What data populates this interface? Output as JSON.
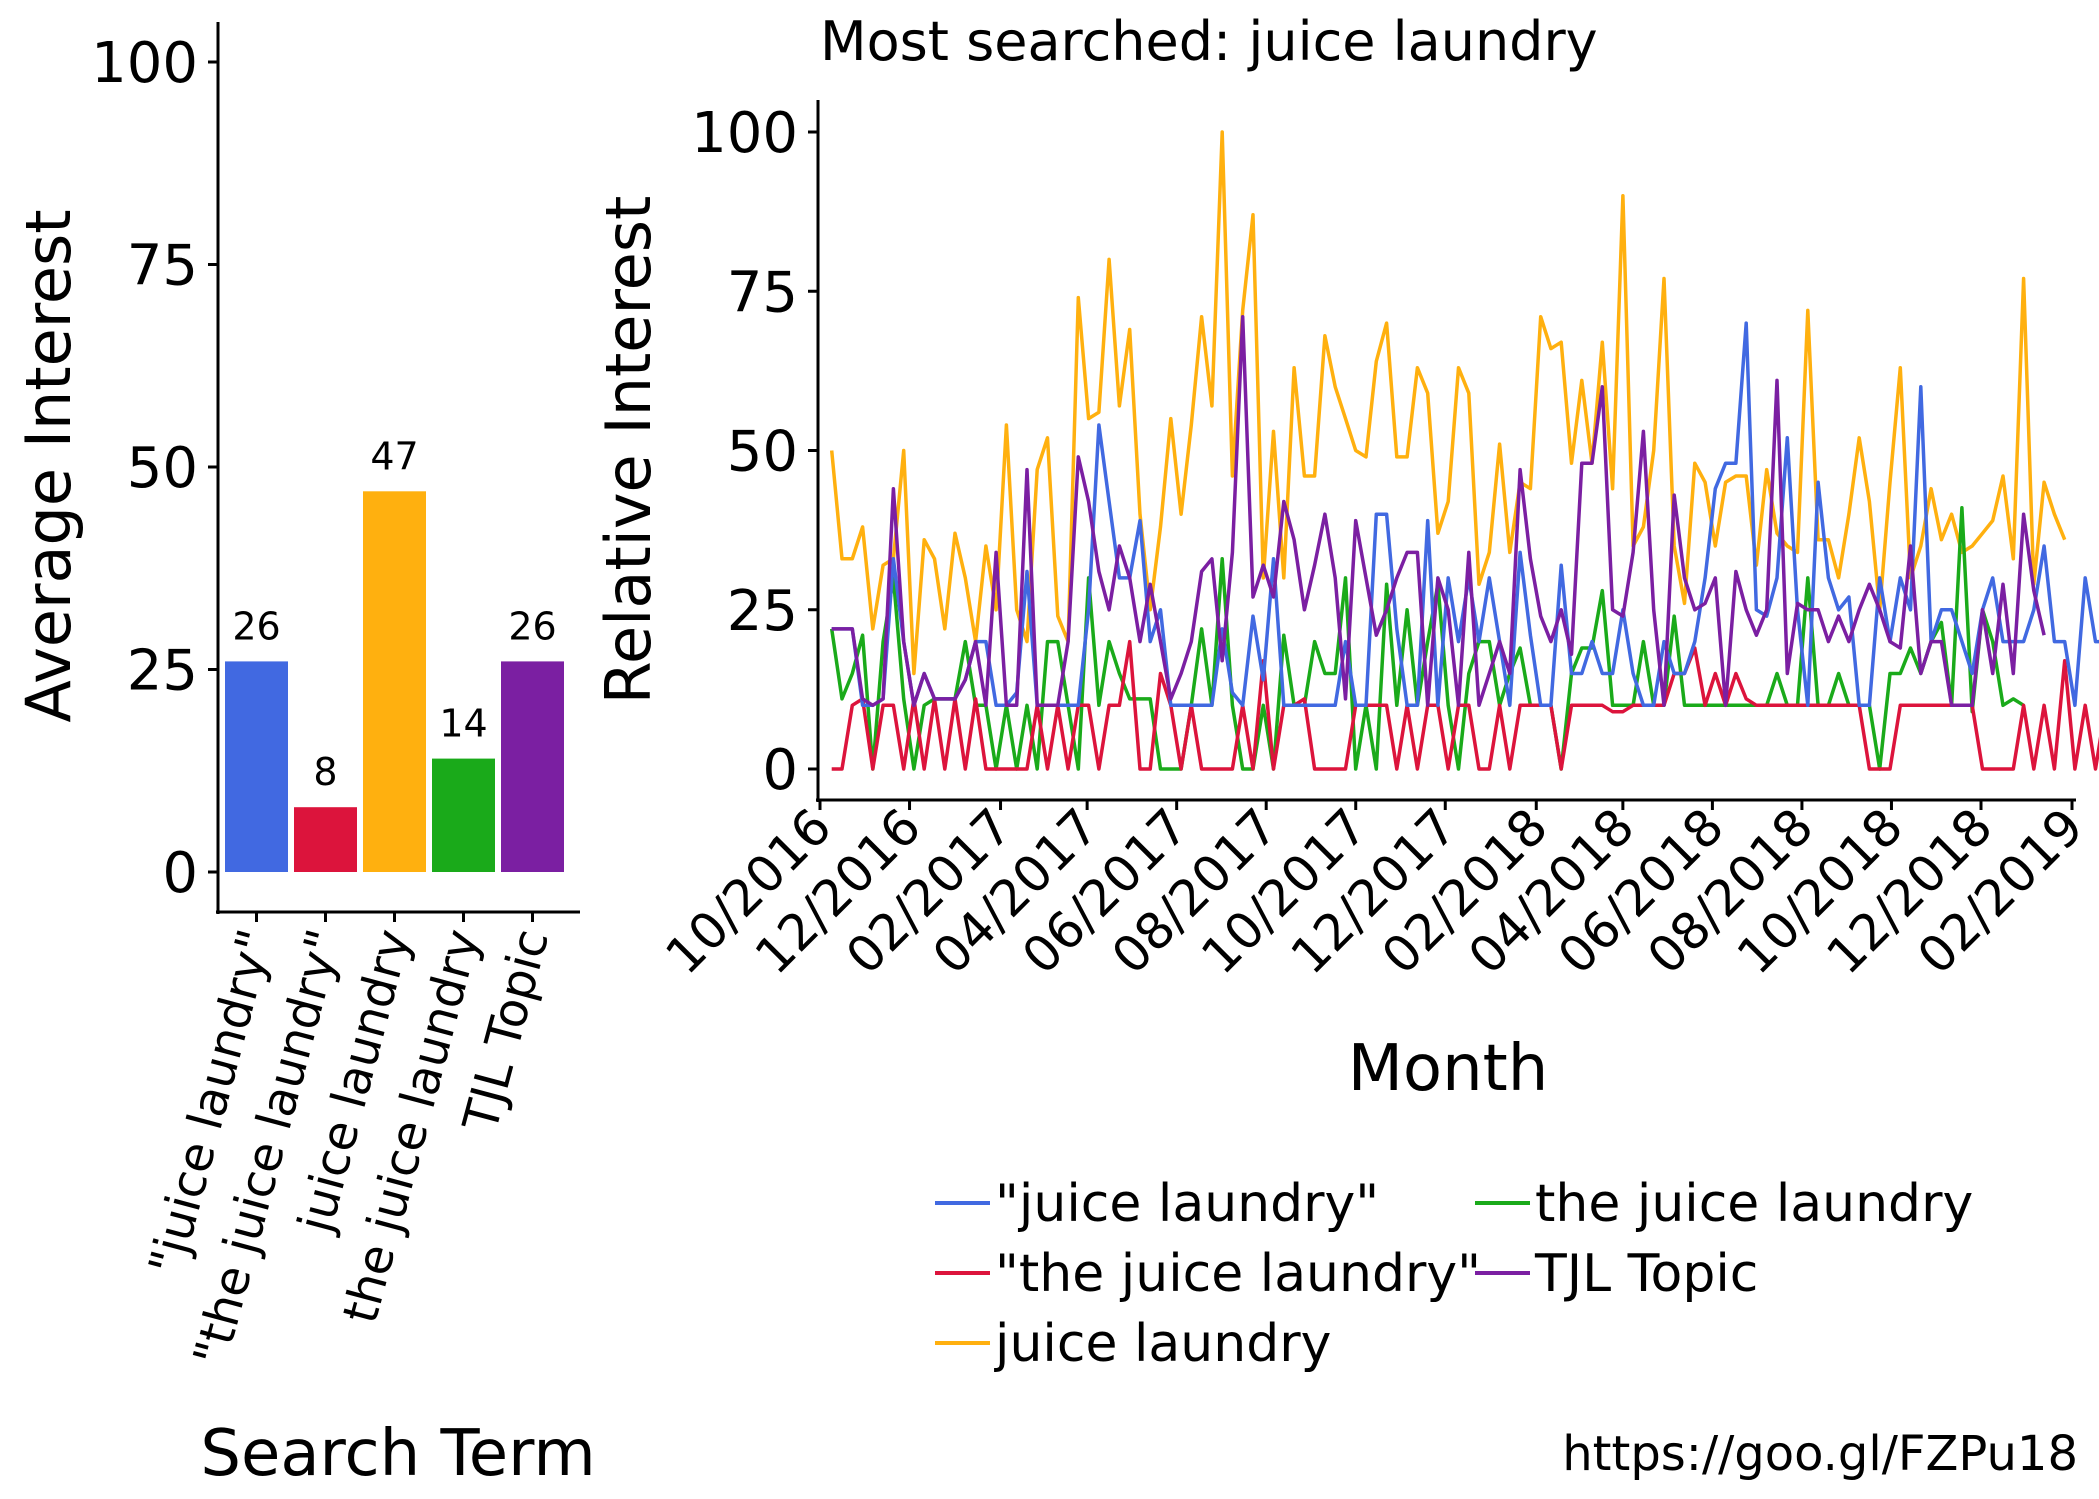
{
  "title": "Most searched: juice laundry",
  "source_url": "https://goo.gl/FZPu18",
  "colors": {
    "title": "#D23A2E",
    "jl_quoted": "#4169E1",
    "tjl_quoted": "#DC143C",
    "jl": "#FFB00F",
    "tjl": "#1AAA1A",
    "topic": "#7B1FA2"
  },
  "chart_data": [
    {
      "type": "bar",
      "xlabel": "Search Term",
      "ylabel": "Average Interest",
      "ylim": [
        0,
        100
      ],
      "yticks": [
        "0",
        "25",
        "50",
        "75",
        "100"
      ],
      "categories": [
        "\"juice laundry\"",
        "\"the juice laundry\"",
        "juice laundry",
        "the juice laundry",
        "TJL Topic"
      ],
      "values": [
        26,
        8,
        47,
        14,
        26
      ],
      "value_labels": [
        "26",
        "8",
        "47",
        "14",
        "26"
      ],
      "bar_colors": [
        "#4169E1",
        "#DC143C",
        "#FFB00F",
        "#1AAA1A",
        "#7B1FA2"
      ]
    },
    {
      "type": "line",
      "xlabel": "Month",
      "ylabel": "Relative Interest",
      "ylim": [
        0,
        100
      ],
      "yticks": [
        "0",
        "25",
        "50",
        "75",
        "100"
      ],
      "xticks": [
        "10/2016",
        "12/2016",
        "02/2017",
        "04/2017",
        "06/2017",
        "08/2017",
        "10/2017",
        "12/2017",
        "02/2018",
        "04/2018",
        "06/2018",
        "08/2018",
        "10/2018",
        "12/2018",
        "02/2019"
      ],
      "x_first": "2016-10-09",
      "x_step": "weekly",
      "legend_position": "bottom",
      "series": [
        {
          "name": "\"juice laundry\"",
          "color": "#4169E1",
          "values": [
            22,
            22,
            22,
            10,
            10,
            11,
            33,
            20,
            10,
            15,
            11,
            11,
            11,
            14,
            20,
            20,
            10,
            10,
            12,
            31,
            10,
            10,
            10,
            10,
            10,
            25,
            54,
            42,
            30,
            30,
            39,
            20,
            25,
            10,
            10,
            10,
            10,
            10,
            22,
            12,
            10,
            24,
            14,
            33,
            10,
            10,
            10,
            10,
            10,
            10,
            20,
            10,
            10,
            40,
            40,
            22,
            10,
            10,
            39,
            10,
            30,
            20,
            30,
            20,
            30,
            20,
            10,
            34,
            21,
            10,
            10,
            32,
            15,
            15,
            20,
            15,
            15,
            25,
            15,
            10,
            10,
            20,
            15,
            15,
            20,
            30,
            44,
            48,
            48,
            70,
            25,
            24,
            30,
            52,
            25,
            10,
            45,
            30,
            25,
            27,
            10,
            10,
            30,
            20,
            30,
            25,
            60,
            20,
            25,
            25,
            20,
            15,
            25,
            30,
            20,
            20,
            20,
            25,
            35,
            20,
            20,
            10,
            30,
            20,
            20,
            15,
            10,
            10,
            20,
            15,
            20,
            20,
            20,
            30,
            15,
            15,
            35,
            35,
            20
          ]
        },
        {
          "name": "\"the juice laundry\"",
          "color": "#DC143C",
          "values": [
            0,
            0,
            10,
            11,
            0,
            10,
            10,
            0,
            11,
            0,
            11,
            0,
            11,
            0,
            11,
            0,
            0,
            0,
            0,
            0,
            10,
            0,
            10,
            0,
            10,
            10,
            0,
            10,
            10,
            20,
            0,
            0,
            15,
            10,
            0,
            10,
            0,
            0,
            0,
            0,
            10,
            0,
            17,
            0,
            10,
            10,
            11,
            0,
            0,
            0,
            0,
            10,
            10,
            10,
            10,
            0,
            10,
            0,
            10,
            10,
            0,
            10,
            10,
            0,
            0,
            10,
            0,
            10,
            10,
            10,
            10,
            0,
            10,
            10,
            10,
            10,
            9,
            9,
            10,
            10,
            10,
            10,
            15,
            15,
            19,
            10,
            15,
            10,
            15,
            11,
            10,
            10,
            10,
            10,
            10,
            10,
            10,
            10,
            10,
            10,
            10,
            0,
            0,
            0,
            10,
            10,
            10,
            10,
            10,
            10,
            10,
            10,
            0,
            0,
            0,
            0,
            10,
            0,
            10,
            0,
            17,
            0,
            10,
            0,
            10,
            0,
            10,
            0,
            10,
            0,
            10,
            0,
            0,
            0,
            0,
            10,
            0,
            0
          ]
        },
        {
          "name": "juice laundry",
          "color": "#FFB00F",
          "values": [
            50,
            33,
            33,
            38,
            22,
            32,
            33,
            50,
            15,
            36,
            33,
            22,
            37,
            30,
            20,
            35,
            25,
            54,
            25,
            20,
            47,
            52,
            24,
            20,
            74,
            55,
            56,
            80,
            57,
            69,
            40,
            25,
            38,
            55,
            40,
            54,
            71,
            57,
            100,
            46,
            72,
            87,
            30,
            53,
            30,
            63,
            46,
            46,
            68,
            60,
            55,
            50,
            49,
            64,
            70,
            49,
            49,
            63,
            59,
            37,
            42,
            63,
            59,
            29,
            34,
            51,
            34,
            45,
            44,
            71,
            66,
            67,
            48,
            61,
            48,
            67,
            44,
            90,
            35,
            38,
            50,
            77,
            35,
            26,
            48,
            45,
            35,
            45,
            46,
            46,
            32,
            47,
            37,
            35,
            34,
            72,
            36,
            36,
            30,
            40,
            52,
            42,
            25,
            45,
            63,
            30,
            35,
            44,
            36,
            40,
            34,
            35,
            37,
            39,
            46,
            33,
            77,
            29,
            45,
            40,
            36
          ]
        },
        {
          "name": "the juice laundry",
          "color": "#1AAA1A",
          "values": [
            22,
            11,
            15,
            21,
            0,
            20,
            30,
            11,
            0,
            10,
            11,
            11,
            11,
            20,
            10,
            10,
            0,
            10,
            0,
            10,
            0,
            20,
            20,
            10,
            0,
            30,
            10,
            20,
            15,
            11,
            11,
            11,
            0,
            0,
            0,
            10,
            22,
            10,
            33,
            10,
            0,
            0,
            10,
            0,
            21,
            10,
            10,
            20,
            15,
            15,
            30,
            0,
            10,
            0,
            29,
            10,
            25,
            10,
            20,
            29,
            10,
            0,
            15,
            20,
            20,
            10,
            15,
            19,
            10,
            10,
            10,
            0,
            15,
            19,
            19,
            28,
            10,
            10,
            10,
            20,
            10,
            10,
            24,
            10,
            10,
            10,
            10,
            10,
            10,
            10,
            10,
            10,
            15,
            10,
            10,
            30,
            10,
            10,
            15,
            10,
            10,
            10,
            0,
            15,
            15,
            19,
            15,
            20,
            23,
            10,
            41,
            9,
            25,
            20,
            10,
            11,
            10
          ]
        },
        {
          "name": "TJL Topic",
          "color": "#7B1FA2",
          "values": [
            22,
            22,
            22,
            11,
            10,
            11,
            44,
            20,
            10,
            15,
            11,
            11,
            11,
            14,
            20,
            10,
            34,
            10,
            10,
            47,
            10,
            10,
            10,
            20,
            49,
            42,
            31,
            25,
            35,
            30,
            20,
            29,
            20,
            11,
            15,
            20,
            31,
            33,
            17,
            34,
            71,
            27,
            32,
            27,
            42,
            36,
            25,
            32,
            40,
            30,
            11,
            39,
            30,
            21,
            25,
            30,
            34,
            34,
            10,
            30,
            25,
            10,
            34,
            10,
            15,
            20,
            15,
            47,
            33,
            24,
            20,
            25,
            18,
            48,
            48,
            60,
            25,
            24,
            34,
            53,
            25,
            10,
            43,
            30,
            25,
            26,
            30,
            10,
            31,
            25,
            21,
            25,
            61,
            15,
            26,
            25,
            25,
            20,
            24,
            20,
            25,
            29,
            25,
            20,
            19,
            35,
            15,
            20,
            20,
            10,
            10,
            10,
            25,
            15,
            29,
            15,
            40,
            28,
            21
          ]
        }
      ]
    }
  ]
}
